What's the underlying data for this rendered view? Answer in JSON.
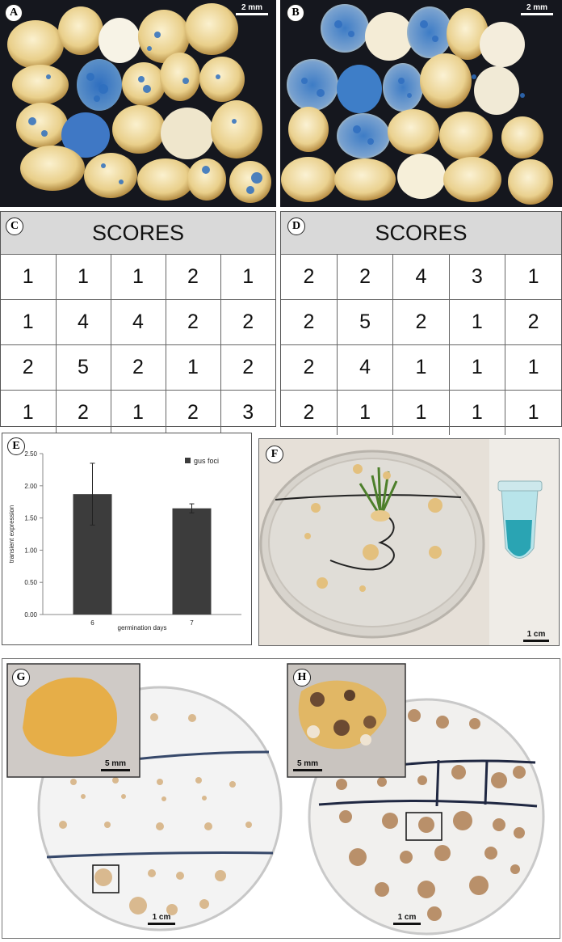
{
  "panels": {
    "a": {
      "label": "A",
      "scale_bar": "2 mm"
    },
    "b": {
      "label": "B",
      "scale_bar": "2 mm"
    },
    "c": {
      "label": "C",
      "header": "SCORES",
      "rows": [
        [
          "1",
          "1",
          "1",
          "2",
          "1"
        ],
        [
          "1",
          "4",
          "4",
          "2",
          "2"
        ],
        [
          "2",
          "5",
          "2",
          "1",
          "2"
        ],
        [
          "1",
          "2",
          "1",
          "2",
          "3"
        ]
      ]
    },
    "d": {
      "label": "D",
      "header": "SCORES",
      "rows": [
        [
          "2",
          "2",
          "4",
          "3",
          "1"
        ],
        [
          "2",
          "5",
          "2",
          "1",
          "2"
        ],
        [
          "2",
          "4",
          "1",
          "1",
          "1"
        ],
        [
          "2",
          "1",
          "1",
          "1",
          "1"
        ]
      ]
    },
    "e": {
      "label": "E"
    },
    "f": {
      "label": "F",
      "scale_bar": "1 cm"
    },
    "g": {
      "label": "G",
      "inset_scale_bar": "5 mm",
      "scale_bar": "1 cm"
    },
    "h": {
      "label": "H",
      "inset_scale_bar": "5 mm",
      "scale_bar": "1 cm"
    }
  },
  "chart_data": {
    "type": "bar",
    "categories": [
      "6",
      "7"
    ],
    "series": [
      {
        "name": "gus foci",
        "values": [
          1.87,
          1.65
        ],
        "errors": [
          0.48,
          0.07
        ],
        "color": "#3c3c3c"
      }
    ],
    "xlabel": "germination days",
    "ylabel": "transient expression",
    "ylim": [
      0,
      2.5
    ],
    "yticks": [
      "0.00",
      "0.50",
      "1.00",
      "1.50",
      "2.00",
      "2.50"
    ],
    "legend": "top-right",
    "grid": false
  }
}
